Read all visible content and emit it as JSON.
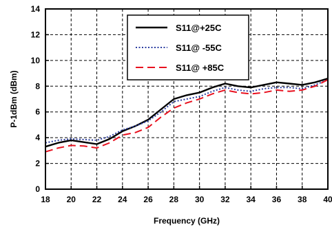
{
  "chart_data": {
    "type": "line",
    "title": "",
    "xlabel": "Frequency (GHz)",
    "ylabel": "P-1dBm (dBm)",
    "xlim": [
      18,
      40
    ],
    "ylim": [
      0,
      14
    ],
    "xticks": [
      "18",
      "20",
      "22",
      "24",
      "26",
      "28",
      "30",
      "32",
      "34",
      "36",
      "38",
      "40"
    ],
    "yticks": [
      "0",
      "2",
      "4",
      "6",
      "8",
      "10",
      "12",
      "14"
    ],
    "grid": true,
    "legend_position": "top-right",
    "x": [
      18,
      19,
      20,
      21,
      22,
      23,
      24,
      25,
      26,
      27,
      28,
      29,
      30,
      31,
      32,
      33,
      34,
      35,
      36,
      37,
      38,
      39,
      40
    ],
    "series": [
      {
        "name": "S11@+25C",
        "color": "#000000",
        "style": "solid",
        "values": [
          3.3,
          3.6,
          3.8,
          3.65,
          3.5,
          3.9,
          4.5,
          4.9,
          5.4,
          6.2,
          7.0,
          7.3,
          7.5,
          7.9,
          8.2,
          8.0,
          7.9,
          8.1,
          8.3,
          8.2,
          8.1,
          8.3,
          8.6
        ]
      },
      {
        "name": "S11@ -55C",
        "color": "#2a3ca0",
        "style": "dotted",
        "values": [
          3.6,
          3.8,
          3.9,
          3.85,
          3.8,
          4.1,
          4.6,
          4.9,
          5.3,
          6.0,
          6.8,
          7.0,
          7.2,
          7.6,
          7.9,
          7.7,
          7.6,
          7.8,
          7.9,
          7.9,
          7.8,
          8.1,
          8.5
        ]
      },
      {
        "name": "S11@ +85C",
        "color": "#e8101e",
        "style": "dashed",
        "values": [
          2.9,
          3.2,
          3.4,
          3.35,
          3.2,
          3.6,
          4.2,
          4.4,
          4.8,
          5.6,
          6.3,
          6.7,
          7.0,
          7.4,
          7.7,
          7.5,
          7.4,
          7.5,
          7.7,
          7.6,
          7.7,
          8.0,
          8.5
        ]
      }
    ]
  }
}
